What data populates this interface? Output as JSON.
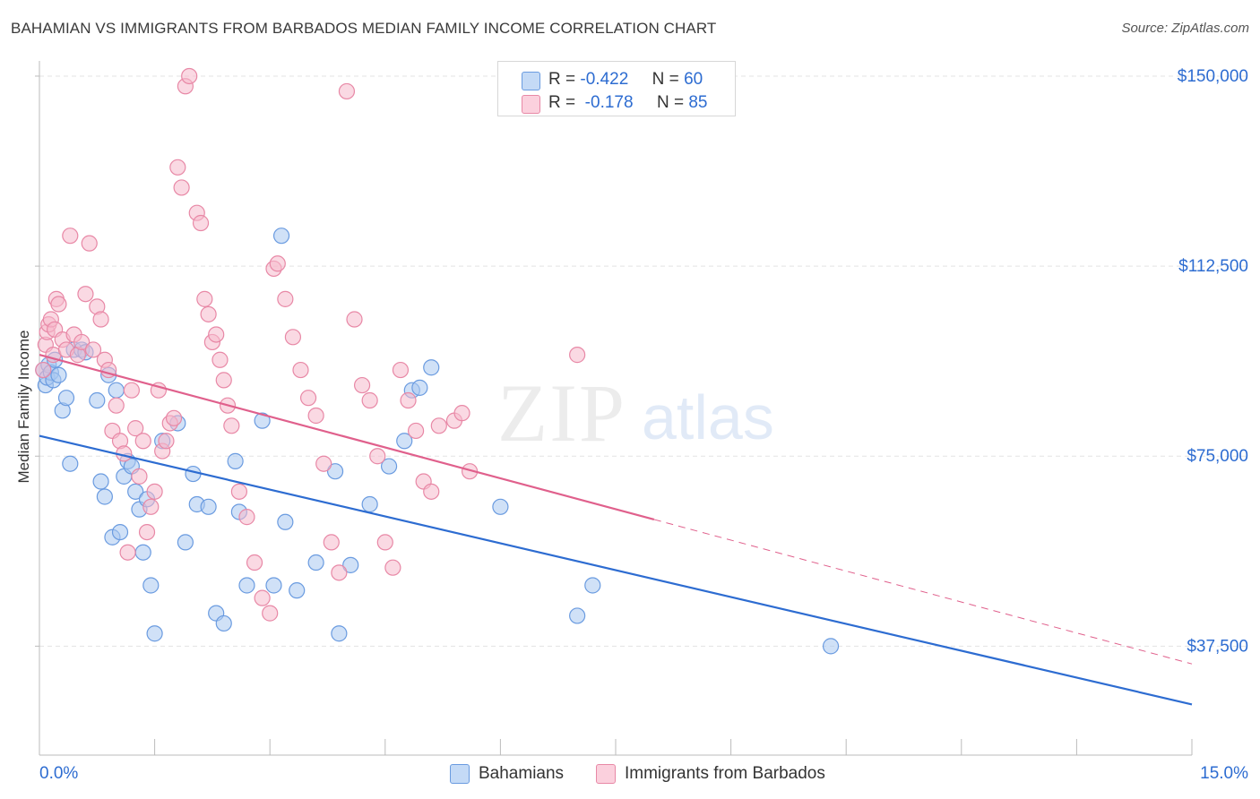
{
  "title": "BAHAMIAN VS IMMIGRANTS FROM BARBADOS MEDIAN FAMILY INCOME CORRELATION CHART",
  "source": "Source: ZipAtlas.com",
  "legend": {
    "rows": [
      {
        "r_label": "R =",
        "r_value": "-0.422",
        "n_label": "N =",
        "n_value": "60"
      },
      {
        "r_label": "R =",
        "r_value": "-0.178",
        "n_label": "N =",
        "n_value": "85"
      }
    ]
  },
  "watermark": {
    "zip": "ZIP",
    "atlas": "atlas"
  },
  "chart_data": {
    "type": "scatter",
    "xlabel": "",
    "ylabel": "Median Family Income",
    "xlim": [
      0,
      15
    ],
    "ylim": [
      16000,
      153000
    ],
    "x_tick_labels": [
      "0.0%",
      "15.0%"
    ],
    "y_ticks": [
      37500,
      75000,
      112500,
      150000
    ],
    "y_tick_labels": [
      "$37,500",
      "$75,000",
      "$112,500",
      "$150,000"
    ],
    "grid": true,
    "legend_placement": "bottom-center",
    "colors": {
      "Bahamians": {
        "fill": "#a9c8f1",
        "stroke": "#6a9be0",
        "line": "#2d6cd1"
      },
      "Immigrants from Barbados": {
        "fill": "#f6b9cc",
        "stroke": "#e888a6",
        "line": "#e0608c"
      },
      "tick_label": "#2d6cd1"
    },
    "series": [
      {
        "name": "Bahamians",
        "trend": {
          "x0": 0.0,
          "y0": 79000,
          "x1": 15.0,
          "y1": 26000
        },
        "points": [
          [
            0.05,
            92000
          ],
          [
            0.08,
            89000
          ],
          [
            0.1,
            90500
          ],
          [
            0.12,
            93000
          ],
          [
            0.15,
            91500
          ],
          [
            0.18,
            90000
          ],
          [
            0.2,
            94000
          ],
          [
            0.25,
            91000
          ],
          [
            0.3,
            84000
          ],
          [
            0.35,
            86500
          ],
          [
            0.4,
            73500
          ],
          [
            0.45,
            96000
          ],
          [
            0.55,
            96000
          ],
          [
            0.6,
            95500
          ],
          [
            0.75,
            86000
          ],
          [
            0.8,
            70000
          ],
          [
            0.85,
            67000
          ],
          [
            0.9,
            91000
          ],
          [
            1.0,
            88000
          ],
          [
            0.95,
            59000
          ],
          [
            1.05,
            60000
          ],
          [
            1.1,
            71000
          ],
          [
            1.15,
            74000
          ],
          [
            1.2,
            73000
          ],
          [
            1.25,
            68000
          ],
          [
            1.3,
            64500
          ],
          [
            1.35,
            56000
          ],
          [
            1.4,
            66500
          ],
          [
            1.45,
            49500
          ],
          [
            1.5,
            40000
          ],
          [
            1.6,
            78000
          ],
          [
            1.8,
            81500
          ],
          [
            1.9,
            58000
          ],
          [
            2.0,
            71500
          ],
          [
            2.05,
            65500
          ],
          [
            2.2,
            65000
          ],
          [
            2.3,
            44000
          ],
          [
            2.4,
            42000
          ],
          [
            2.55,
            74000
          ],
          [
            2.6,
            64000
          ],
          [
            2.7,
            49500
          ],
          [
            2.9,
            82000
          ],
          [
            3.05,
            49500
          ],
          [
            3.15,
            118500
          ],
          [
            3.2,
            62000
          ],
          [
            3.35,
            48500
          ],
          [
            3.6,
            54000
          ],
          [
            3.85,
            72000
          ],
          [
            3.9,
            40000
          ],
          [
            4.05,
            53500
          ],
          [
            4.3,
            65500
          ],
          [
            4.55,
            73000
          ],
          [
            4.75,
            78000
          ],
          [
            4.85,
            88000
          ],
          [
            4.95,
            88500
          ],
          [
            5.1,
            92500
          ],
          [
            6.0,
            65000
          ],
          [
            7.0,
            43500
          ],
          [
            7.2,
            49500
          ],
          [
            10.3,
            37500
          ]
        ]
      },
      {
        "name": "Immigrants from Barbados",
        "trend": {
          "x0": 0.0,
          "y0": 95000,
          "x1": 8.0,
          "y1": 62500,
          "dash_to_x": 15.0,
          "dash_to_y": 34000
        },
        "points": [
          [
            0.05,
            92000
          ],
          [
            0.08,
            97000
          ],
          [
            0.1,
            99500
          ],
          [
            0.12,
            101000
          ],
          [
            0.15,
            102000
          ],
          [
            0.18,
            95000
          ],
          [
            0.2,
            100000
          ],
          [
            0.22,
            106000
          ],
          [
            0.25,
            105000
          ],
          [
            0.3,
            98000
          ],
          [
            0.35,
            96000
          ],
          [
            0.4,
            118500
          ],
          [
            0.45,
            99000
          ],
          [
            0.5,
            95000
          ],
          [
            0.55,
            97500
          ],
          [
            0.6,
            107000
          ],
          [
            0.65,
            117000
          ],
          [
            0.7,
            96000
          ],
          [
            0.75,
            104500
          ],
          [
            0.8,
            102000
          ],
          [
            0.85,
            94000
          ],
          [
            0.9,
            92000
          ],
          [
            0.95,
            80000
          ],
          [
            1.0,
            85000
          ],
          [
            1.05,
            78000
          ],
          [
            1.1,
            75500
          ],
          [
            1.15,
            56000
          ],
          [
            1.2,
            88000
          ],
          [
            1.25,
            80500
          ],
          [
            1.3,
            71000
          ],
          [
            1.35,
            78000
          ],
          [
            1.4,
            60000
          ],
          [
            1.45,
            65000
          ],
          [
            1.5,
            68000
          ],
          [
            1.55,
            88000
          ],
          [
            1.6,
            76000
          ],
          [
            1.65,
            78000
          ],
          [
            1.7,
            81500
          ],
          [
            1.75,
            82500
          ],
          [
            1.8,
            132000
          ],
          [
            1.85,
            128000
          ],
          [
            1.9,
            148000
          ],
          [
            1.95,
            150000
          ],
          [
            2.05,
            123000
          ],
          [
            2.1,
            121000
          ],
          [
            2.15,
            106000
          ],
          [
            2.2,
            103000
          ],
          [
            2.25,
            97500
          ],
          [
            2.3,
            99000
          ],
          [
            2.35,
            94000
          ],
          [
            2.4,
            90000
          ],
          [
            2.45,
            85000
          ],
          [
            2.5,
            81000
          ],
          [
            2.6,
            68000
          ],
          [
            2.7,
            63000
          ],
          [
            2.8,
            54000
          ],
          [
            2.9,
            47000
          ],
          [
            3.0,
            44000
          ],
          [
            3.05,
            112000
          ],
          [
            3.1,
            113000
          ],
          [
            3.2,
            106000
          ],
          [
            3.3,
            98500
          ],
          [
            3.4,
            92000
          ],
          [
            3.5,
            86500
          ],
          [
            3.6,
            83000
          ],
          [
            3.7,
            73500
          ],
          [
            3.8,
            58000
          ],
          [
            3.9,
            52000
          ],
          [
            4.0,
            147000
          ],
          [
            4.1,
            102000
          ],
          [
            4.2,
            89000
          ],
          [
            4.3,
            86000
          ],
          [
            4.4,
            75000
          ],
          [
            4.5,
            58000
          ],
          [
            4.6,
            53000
          ],
          [
            4.7,
            92000
          ],
          [
            4.8,
            86000
          ],
          [
            4.9,
            80000
          ],
          [
            5.0,
            70000
          ],
          [
            5.1,
            68000
          ],
          [
            5.2,
            81000
          ],
          [
            5.4,
            82000
          ],
          [
            5.5,
            83500
          ],
          [
            5.6,
            72000
          ],
          [
            7.0,
            95000
          ]
        ]
      }
    ]
  }
}
